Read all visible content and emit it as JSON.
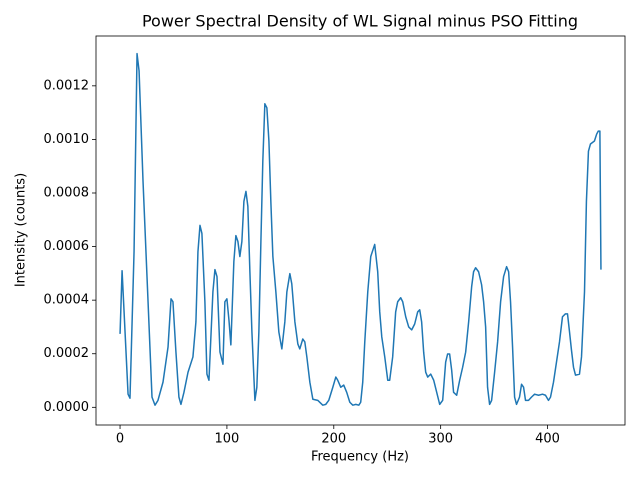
{
  "chart_data": {
    "type": "line",
    "title": "Power Spectral Density of WL Signal minus PSO Fitting",
    "xlabel": "Frequency (Hz)",
    "ylabel": "Intensity (counts)",
    "color": "#1f77b4",
    "xlim": [
      -22.5,
      472.5
    ],
    "ylim": [
      -6.6e-05,
      0.001386
    ],
    "xticks": [
      0,
      100,
      200,
      300,
      400
    ],
    "yticks": [
      {
        "value": 0,
        "label": "0.0000"
      },
      {
        "value": 0.0002,
        "label": "0.0002"
      },
      {
        "value": 0.0004,
        "label": "0.0004"
      },
      {
        "value": 0.0006,
        "label": "0.0006"
      },
      {
        "value": 0.0008,
        "label": "0.0008"
      },
      {
        "value": 0.001,
        "label": "0.0010"
      },
      {
        "value": 0.0012,
        "label": "0.0012"
      }
    ],
    "x": [
      0,
      1.9,
      7.5,
      9.3,
      13.1,
      15.9,
      17.8,
      21.5,
      26.2,
      29.9,
      32.7,
      35.5,
      40.2,
      44.9,
      47.7,
      49.5,
      52.3,
      55.1,
      57.0,
      59.8,
      63.6,
      68.2,
      71.0,
      72.9,
      74.8,
      76.6,
      79.4,
      81.3,
      83.2,
      86.9,
      88.8,
      90.7,
      93.5,
      96.3,
      98.1,
      100,
      101.9,
      103.7,
      106.5,
      108.4,
      110.3,
      112.1,
      114.0,
      115.9,
      117.8,
      119.6,
      121.5,
      123.4,
      126.2,
      128.0,
      129.9,
      131.8,
      133.6,
      135.5,
      137.4,
      139.3,
      141.1,
      143.0,
      145.8,
      148.6,
      151.4,
      154.2,
      156.1,
      158.9,
      160.7,
      163.6,
      166.4,
      168.2,
      171.0,
      172.9,
      174.8,
      177.6,
      180.4,
      185.0,
      189.7,
      192.5,
      195.3,
      199.1,
      201.9,
      203.7,
      206.5,
      209.3,
      212.1,
      215.0,
      217.8,
      220.6,
      223.4,
      225.2,
      227.1,
      229.0,
      231.8,
      234.6,
      238.3,
      241.1,
      243.0,
      244.9,
      247.7,
      250.5,
      252.3,
      255.1,
      257.9,
      259.8,
      262.6,
      264.5,
      267.3,
      270.1,
      272.9,
      275.7,
      278.5,
      280.4,
      282.2,
      284.1,
      286.0,
      287.9,
      290.7,
      293.5,
      296.3,
      299.1,
      301.9,
      304.7,
      306.5,
      308.4,
      310.3,
      312.1,
      315.0,
      317.8,
      320.6,
      323.4,
      326.2,
      329.0,
      330.8,
      332.7,
      335.5,
      338.3,
      340.2,
      342.1,
      343.9,
      345.8,
      347.7,
      350.5,
      353.3,
      356.1,
      358.9,
      361.7,
      363.6,
      365.4,
      367.3,
      369.2,
      371.0,
      373.8,
      375.7,
      377.6,
      379.4,
      382.2,
      385.0,
      387.9,
      391.6,
      395.3,
      398.1,
      400.9,
      402.8,
      405.6,
      408.4,
      411.2,
      414.0,
      416.8,
      418.7,
      420.6,
      422.4,
      424.3,
      426.2,
      429.9,
      431.8,
      434.6,
      436.4,
      438.3,
      440.2,
      443.9,
      446.0,
      447.5,
      449.0,
      450.0
    ],
    "values": [
      0.000274,
      0.00051,
      4.9e-05,
      3.4e-05,
      0.000581,
      0.00132,
      0.001256,
      0.000844,
      0.000394,
      3.8e-05,
      8e-06,
      2.6e-05,
      9.4e-05,
      0.000225,
      0.000405,
      0.000394,
      0.000206,
      3.8e-05,
      1.1e-05,
      5.6e-05,
      0.000131,
      0.000188,
      0.000319,
      0.000581,
      0.000679,
      0.000649,
      0.000394,
      0.000124,
      0.000101,
      0.000431,
      0.000514,
      0.000488,
      0.000206,
      0.000161,
      0.000394,
      0.000405,
      0.000326,
      0.000233,
      0.000544,
      0.000641,
      0.000619,
      0.000563,
      0.000619,
      0.000769,
      0.000806,
      0.00075,
      0.000506,
      0.000281,
      2.6e-05,
      7.5e-05,
      0.000281,
      0.000619,
      0.000919,
      0.001133,
      0.001118,
      0.000994,
      0.000769,
      0.000563,
      0.000431,
      0.000281,
      0.000218,
      0.000319,
      0.000431,
      0.000499,
      0.000461,
      0.000319,
      0.000236,
      0.000218,
      0.000255,
      0.000244,
      0.000188,
      9.4e-05,
      3e-05,
      2.6e-05,
      8e-06,
      1.1e-05,
      2.6e-05,
      7.5e-05,
      0.000113,
      0.000101,
      7.5e-05,
      8.3e-05,
      5.6e-05,
      1.9e-05,
      8e-06,
      1.1e-05,
      8e-06,
      1.9e-05,
      9.4e-05,
      0.000244,
      0.000431,
      0.000563,
      0.000608,
      0.000506,
      0.000356,
      0.000263,
      0.000188,
      0.000101,
      0.000101,
      0.000188,
      0.000356,
      0.000394,
      0.000409,
      0.000394,
      0.000338,
      0.0003,
      0.000289,
      0.000311,
      0.000356,
      0.000364,
      0.000319,
      0.000206,
      0.000131,
      0.000113,
      0.000124,
      0.000101,
      5.6e-05,
      1.1e-05,
      2.6e-05,
      0.000169,
      0.000199,
      0.000199,
      0.000139,
      5.6e-05,
      4.5e-05,
      0.000101,
      0.00015,
      0.000206,
      0.000319,
      0.00045,
      0.000506,
      0.000521,
      0.000506,
      0.000458,
      0.000394,
      0.0003,
      7.5e-05,
      1.1e-05,
      2.6e-05,
      0.000131,
      0.000244,
      0.000394,
      0.000488,
      0.000525,
      0.000506,
      0.000394,
      0.000225,
      3.8e-05,
      1.1e-05,
      3.8e-05,
      8.6e-05,
      7.5e-05,
      2.6e-05,
      2.6e-05,
      3.8e-05,
      4.9e-05,
      4.5e-05,
      4.9e-05,
      4.5e-05,
      2.6e-05,
      3.8e-05,
      9.4e-05,
      0.000169,
      0.000244,
      0.000338,
      0.000349,
      0.000349,
      0.000281,
      0.000214,
      0.00015,
      0.00012,
      0.000124,
      0.000188,
      0.000431,
      0.000769,
      0.000956,
      0.000983,
      0.000994,
      0.00102,
      0.001031,
      0.001031,
      0.000514
    ]
  }
}
